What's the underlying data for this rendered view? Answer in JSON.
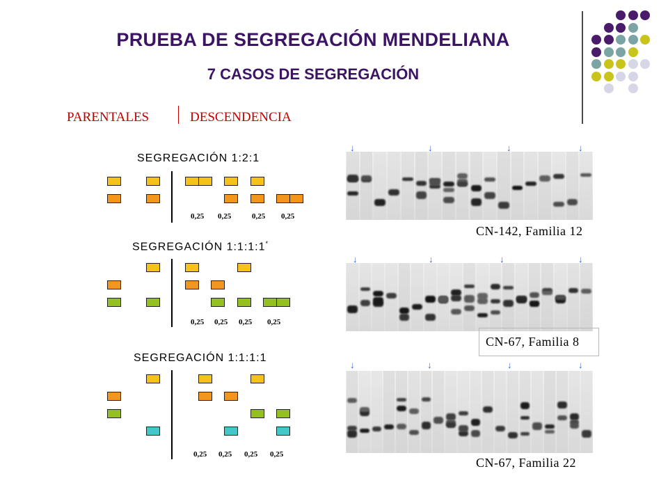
{
  "title": "PRUEBA DE SEGREGACIÓN MENDELIANA",
  "subtitle": "7 CASOS DE SEGREGACIÓN",
  "header_left": "PARENTALES",
  "header_right": "DESCENDENCIA",
  "colors": {
    "title": "#3c1464",
    "header": "#c00000",
    "yellow": "#f5c219",
    "orange": "#f2961c",
    "green": "#94c11f",
    "cyan": "#44c7c9",
    "arrow": "#2f5fd6",
    "purple": "#4a1a6b",
    "teal": "#7aa5a4",
    "olive": "#c9c41a",
    "lavender": "#d6d6e6"
  },
  "schemes": [
    {
      "heading": "SEGREGACIÓN 1:2:1",
      "fractions": [
        "0,25",
        "0,25",
        "0,25",
        "0,25"
      ]
    },
    {
      "heading": "SEGREGACIÓN 1:1:1:1",
      "asterisk": "*",
      "fractions": [
        "0,25",
        "0,25",
        "0,25",
        "0,25"
      ]
    },
    {
      "heading": "SEGREGACIÓN 1:1:1:1",
      "fractions": [
        "0,25",
        "0,25",
        "0,25",
        "0,25"
      ]
    }
  ],
  "gels": [
    {
      "caption": "CN-142, Familia 12",
      "arrow": "↓"
    },
    {
      "caption": "CN-67, Familia 8",
      "arrow": "↓"
    },
    {
      "caption": "CN-67, Familia 22",
      "arrow": "↓"
    }
  ]
}
